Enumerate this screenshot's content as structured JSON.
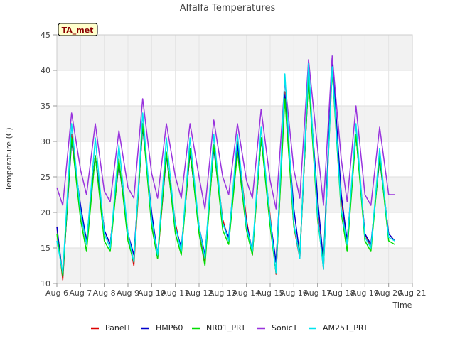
{
  "chart_data": {
    "type": "line",
    "title": "Alfalfa Temperatures",
    "xlabel": "Time",
    "ylabel": "Temperature (C)",
    "ylim": [
      10,
      45
    ],
    "yticks": [
      10,
      15,
      20,
      25,
      30,
      35,
      40,
      45
    ],
    "xlim": [
      6,
      21
    ],
    "xticks": [
      {
        "value": 6,
        "label": "Aug 6"
      },
      {
        "value": 7,
        "label": "Aug 7"
      },
      {
        "value": 8,
        "label": "Aug 8"
      },
      {
        "value": 9,
        "label": "Aug 9"
      },
      {
        "value": 10,
        "label": "Aug 10"
      },
      {
        "value": 11,
        "label": "Aug 11"
      },
      {
        "value": 12,
        "label": "Aug 12"
      },
      {
        "value": 13,
        "label": "Aug 13"
      },
      {
        "value": 14,
        "label": "Aug 14"
      },
      {
        "value": 15,
        "label": "Aug 15"
      },
      {
        "value": 16,
        "label": "Aug 16"
      },
      {
        "value": 17,
        "label": "Aug 17"
      },
      {
        "value": 18,
        "label": "Aug 18"
      },
      {
        "value": 19,
        "label": "Aug 19"
      },
      {
        "value": 20,
        "label": "Aug 20"
      },
      {
        "value": 21,
        "label": "Aug 21"
      }
    ],
    "grid": "horizontal bands",
    "legend_position": "bottom",
    "annotation": "TA_met",
    "series": [
      {
        "name": "PanelT",
        "color": "#dd0000",
        "x": [
          6.0,
          6.25,
          6.62,
          7.0,
          7.25,
          7.62,
          8.0,
          8.25,
          8.62,
          9.0,
          9.25,
          9.62,
          10.0,
          10.25,
          10.62,
          11.0,
          11.25,
          11.62,
          12.0,
          12.25,
          12.62,
          13.0,
          13.25,
          13.62,
          14.0,
          14.25,
          14.62,
          15.0,
          15.25,
          15.62,
          16.0,
          16.25,
          16.62,
          17.0,
          17.25,
          17.62,
          18.0,
          18.25,
          18.62,
          19.0,
          19.25,
          19.62,
          20.0,
          20.25
        ],
        "y": [
          18.0,
          10.5,
          31.0,
          20.0,
          15.5,
          28.0,
          17.5,
          15.5,
          27.0,
          17.0,
          12.5,
          32.5,
          19.0,
          13.5,
          28.0,
          18.5,
          14.5,
          28.5,
          18.0,
          13.0,
          29.5,
          19.0,
          16.0,
          30.0,
          19.0,
          14.0,
          30.5,
          19.5,
          11.3,
          37.0,
          18.0,
          13.5,
          39.5,
          20.0,
          12.0,
          41.0,
          22.0,
          15.5,
          31.0,
          17.0,
          15.0,
          28.0,
          17.0,
          16.0
        ]
      },
      {
        "name": "HMP60",
        "color": "#0000cc",
        "x": [
          6.0,
          6.25,
          6.62,
          7.0,
          7.25,
          7.62,
          8.0,
          8.25,
          8.62,
          9.0,
          9.25,
          9.62,
          10.0,
          10.25,
          10.62,
          11.0,
          11.25,
          11.62,
          12.0,
          12.25,
          12.62,
          13.0,
          13.25,
          13.62,
          14.0,
          14.25,
          14.62,
          15.0,
          15.25,
          15.62,
          16.0,
          16.25,
          16.62,
          17.0,
          17.25,
          17.62,
          18.0,
          18.25,
          18.62,
          19.0,
          19.25,
          19.62,
          20.0,
          20.25
        ],
        "y": [
          18.0,
          11.0,
          30.0,
          21.0,
          16.0,
          28.0,
          17.5,
          15.5,
          27.0,
          17.0,
          14.0,
          32.0,
          20.0,
          14.0,
          28.0,
          18.0,
          15.0,
          28.5,
          18.0,
          14.0,
          29.0,
          18.5,
          16.5,
          29.5,
          18.5,
          14.5,
          30.5,
          19.0,
          13.0,
          36.5,
          20.5,
          14.0,
          39.0,
          22.0,
          13.0,
          42.0,
          22.5,
          16.0,
          31.0,
          17.0,
          15.5,
          27.5,
          17.0,
          16.0
        ]
      },
      {
        "name": "NR01_PRT",
        "color": "#00dd00",
        "x": [
          6.0,
          6.25,
          6.62,
          7.0,
          7.25,
          7.62,
          8.0,
          8.25,
          8.62,
          9.0,
          9.25,
          9.62,
          10.0,
          10.25,
          10.62,
          11.0,
          11.25,
          11.62,
          12.0,
          12.25,
          12.62,
          13.0,
          13.25,
          13.62,
          14.0,
          14.25,
          14.62,
          15.0,
          15.25,
          15.62,
          16.0,
          16.25,
          16.62,
          17.0,
          17.25,
          17.62,
          18.0,
          18.25,
          18.62,
          19.0,
          19.25,
          19.62,
          20.0,
          20.25
        ],
        "y": [
          17.0,
          11.0,
          30.5,
          19.0,
          14.5,
          28.0,
          16.0,
          14.5,
          27.5,
          16.0,
          13.0,
          32.5,
          18.0,
          13.5,
          28.5,
          17.0,
          14.0,
          29.0,
          17.0,
          12.5,
          29.5,
          17.5,
          15.5,
          28.5,
          17.5,
          14.0,
          30.5,
          18.0,
          11.5,
          36.0,
          18.0,
          14.0,
          39.0,
          19.0,
          12.5,
          40.0,
          20.0,
          14.5,
          31.0,
          16.0,
          14.5,
          28.0,
          16.0,
          15.5
        ]
      },
      {
        "name": "SonicT",
        "color": "#9933dd",
        "x": [
          6.0,
          6.25,
          6.62,
          7.0,
          7.25,
          7.62,
          8.0,
          8.25,
          8.62,
          9.0,
          9.25,
          9.62,
          10.0,
          10.25,
          10.62,
          11.0,
          11.25,
          11.62,
          12.0,
          12.25,
          12.62,
          13.0,
          13.25,
          13.62,
          14.0,
          14.25,
          14.62,
          15.0,
          15.25,
          15.62,
          16.0,
          16.25,
          16.62,
          17.0,
          17.25,
          17.62,
          18.0,
          18.25,
          18.62,
          19.0,
          19.25,
          19.62,
          20.0,
          20.25
        ],
        "y": [
          23.5,
          21.0,
          34.0,
          26.0,
          22.5,
          32.5,
          23.0,
          21.5,
          31.5,
          23.5,
          22.0,
          36.0,
          25.5,
          22.0,
          32.5,
          25.0,
          22.0,
          32.5,
          25.0,
          20.5,
          33.0,
          25.0,
          22.5,
          32.5,
          24.5,
          22.0,
          34.5,
          24.5,
          20.5,
          38.5,
          26.0,
          22.0,
          41.5,
          29.0,
          21.0,
          42.0,
          27.5,
          21.5,
          35.0,
          22.5,
          21.0,
          32.0,
          22.5,
          22.5
        ]
      },
      {
        "name": "AM25T_PRT",
        "color": "#00e5ee",
        "x": [
          6.0,
          6.25,
          6.62,
          7.0,
          7.25,
          7.62,
          8.0,
          8.25,
          8.62,
          9.0,
          9.25,
          9.62,
          10.0,
          10.25,
          10.62,
          11.0,
          11.25,
          11.62,
          12.0,
          12.25,
          12.62,
          13.0,
          13.25,
          13.62,
          14.0,
          14.25,
          14.62,
          15.0,
          15.25,
          15.62,
          16.0,
          16.25,
          16.62,
          17.0,
          17.25,
          17.62,
          18.0,
          18.25,
          18.62,
          19.0,
          19.25,
          19.62,
          20.0,
          20.25
        ],
        "y": [
          16.0,
          11.5,
          32.5,
          20.0,
          15.5,
          30.5,
          17.0,
          15.0,
          29.5,
          17.0,
          13.0,
          34.0,
          19.0,
          14.0,
          30.5,
          18.0,
          14.5,
          30.5,
          18.0,
          13.5,
          31.0,
          18.5,
          16.0,
          31.0,
          18.0,
          14.5,
          32.0,
          19.0,
          11.5,
          39.5,
          18.5,
          13.5,
          41.0,
          19.5,
          12.0,
          40.5,
          20.5,
          15.5,
          32.5,
          16.5,
          15.0,
          29.0,
          16.5,
          16.0
        ]
      }
    ]
  }
}
